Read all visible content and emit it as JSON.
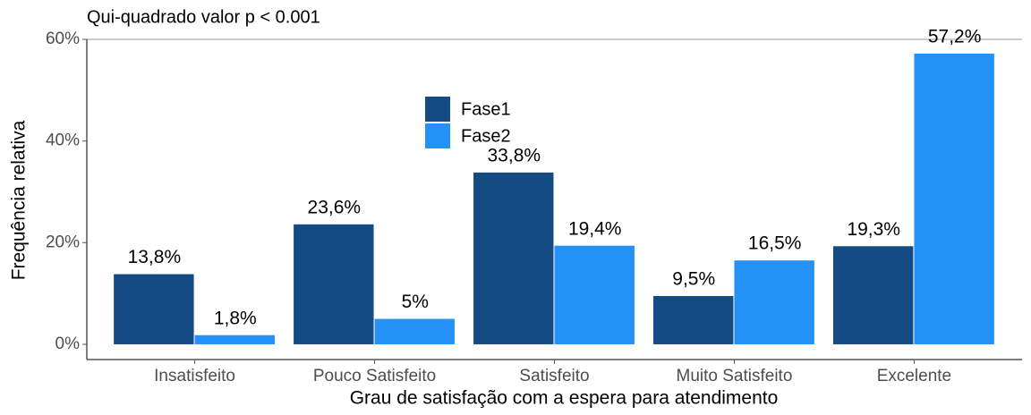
{
  "chart_data": {
    "type": "bar",
    "title": "Qui-quadrado valor p < 0.001",
    "xlabel": "Grau de satisfação com a espera para atendimento",
    "ylabel": "Frequência relativa",
    "categories": [
      "Insatisfeito",
      "Pouco Satisfeito",
      "Satisfeito",
      "Muito Satisfeito",
      "Excelente"
    ],
    "series": [
      {
        "name": "Fase1",
        "color": "#144b82",
        "values": [
          13.8,
          23.6,
          33.8,
          9.5,
          19.3
        ],
        "value_labels": [
          "13,8%",
          "23,6%",
          "33,8%",
          "9,5%",
          "19,3%"
        ]
      },
      {
        "name": "Fase2",
        "color": "#2391f5",
        "values": [
          1.8,
          5,
          19.4,
          16.5,
          57.2
        ],
        "value_labels": [
          "1,8%",
          "5%",
          "19,4%",
          "16,5%",
          "57,2%"
        ]
      }
    ],
    "ylim": [
      -3,
      60
    ],
    "yticks": [
      {
        "value": 0,
        "label": "0%"
      },
      {
        "value": 20,
        "label": "20%"
      },
      {
        "value": 40,
        "label": "40%"
      },
      {
        "value": 60,
        "label": "60%"
      }
    ],
    "legend": "top-center",
    "grid": false
  }
}
